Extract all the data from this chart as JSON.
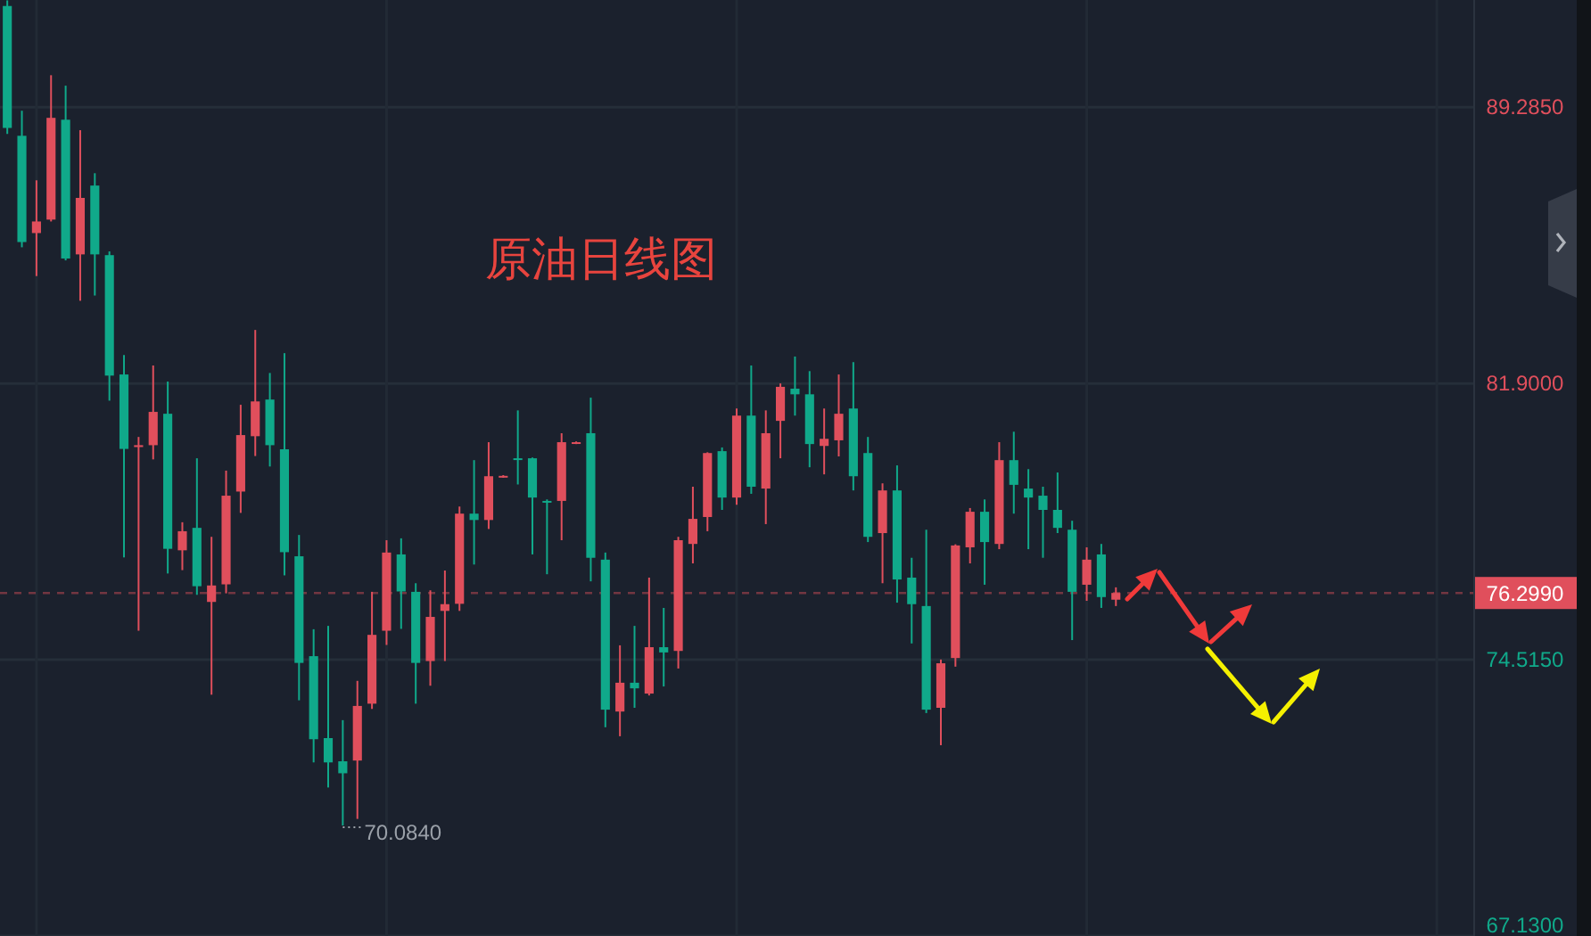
{
  "chart_data": {
    "type": "candlestick",
    "title": "原油日线图",
    "categories": [
      null,
      null,
      null,
      null,
      null,
      null,
      null,
      null,
      null,
      null,
      null,
      null,
      null,
      null,
      null,
      null,
      null,
      null,
      null,
      null,
      null,
      null,
      null,
      null,
      null,
      null,
      null,
      null,
      null,
      null,
      null,
      null,
      null,
      null,
      null,
      null,
      null,
      null,
      null,
      null,
      null,
      null,
      null,
      null,
      null,
      null,
      null,
      null,
      null,
      null,
      null,
      null,
      null,
      null,
      null,
      null,
      null,
      null,
      null,
      null,
      null,
      null,
      null,
      null,
      null,
      null,
      null,
      null,
      null,
      null,
      null,
      null,
      null,
      null,
      null,
      null,
      null,
      null,
      null,
      null,
      null,
      null,
      null,
      null,
      null,
      null,
      null,
      null,
      null,
      null,
      null,
      null,
      null,
      null,
      null,
      null,
      null,
      null,
      null,
      null,
      null
    ],
    "ohlc": [
      [
        91.99,
        92.14,
        88.57,
        88.73
      ],
      [
        88.52,
        89.19,
        85.54,
        85.68
      ],
      [
        85.92,
        87.33,
        84.77,
        86.23
      ],
      [
        86.28,
        90.14,
        86.23,
        89.0
      ],
      [
        88.95,
        89.86,
        85.19,
        85.24
      ],
      [
        85.35,
        88.67,
        84.11,
        86.86
      ],
      [
        87.19,
        87.52,
        84.25,
        85.35
      ],
      [
        85.33,
        85.43,
        81.44,
        82.11
      ],
      [
        82.14,
        82.66,
        77.25,
        80.15
      ],
      [
        80.2,
        80.47,
        75.29,
        80.25
      ],
      [
        80.25,
        82.38,
        79.87,
        81.14
      ],
      [
        81.09,
        81.95,
        76.82,
        77.48
      ],
      [
        77.44,
        78.19,
        76.91,
        77.95
      ],
      [
        78.04,
        79.9,
        76.25,
        76.48
      ],
      [
        76.06,
        77.8,
        73.58,
        76.5
      ],
      [
        76.53,
        79.57,
        76.29,
        78.9
      ],
      [
        79.01,
        81.33,
        78.44,
        80.52
      ],
      [
        80.49,
        83.33,
        79.96,
        81.42
      ],
      [
        81.47,
        82.18,
        79.68,
        80.25
      ],
      [
        80.14,
        82.71,
        76.77,
        77.39
      ],
      [
        77.28,
        77.85,
        73.43,
        74.43
      ],
      [
        74.61,
        75.33,
        71.77,
        72.39
      ],
      [
        72.42,
        75.42,
        71.1,
        71.77
      ],
      [
        71.8,
        72.9,
        70.084,
        71.48
      ],
      [
        71.82,
        73.95,
        70.26,
        73.28
      ],
      [
        73.34,
        76.33,
        73.2,
        75.18
      ],
      [
        75.29,
        77.71,
        74.91,
        77.38
      ],
      [
        77.33,
        77.76,
        75.34,
        76.34
      ],
      [
        76.33,
        76.56,
        73.34,
        74.43
      ],
      [
        74.48,
        76.37,
        73.82,
        75.66
      ],
      [
        75.82,
        76.9,
        74.48,
        76.0
      ],
      [
        76.01,
        78.61,
        75.82,
        78.42
      ],
      [
        78.42,
        79.85,
        77.06,
        78.25
      ],
      [
        78.25,
        80.33,
        78.01,
        79.42
      ],
      [
        79.4,
        79.45,
        79.38,
        79.43
      ],
      [
        79.9,
        81.18,
        79.2,
        79.87
      ],
      [
        79.9,
        79.92,
        77.33,
        78.85
      ],
      [
        78.76,
        78.8,
        76.8,
        78.73
      ],
      [
        78.76,
        80.57,
        77.71,
        80.33
      ],
      [
        80.3,
        80.35,
        80.28,
        80.33
      ],
      [
        80.57,
        81.52,
        76.61,
        77.24
      ],
      [
        77.19,
        77.38,
        72.71,
        73.18
      ],
      [
        73.13,
        74.9,
        72.47,
        73.9
      ],
      [
        73.9,
        75.42,
        73.23,
        73.75
      ],
      [
        73.61,
        76.71,
        73.56,
        74.85
      ],
      [
        74.85,
        75.9,
        73.8,
        74.71
      ],
      [
        74.75,
        77.8,
        74.28,
        77.71
      ],
      [
        77.61,
        79.14,
        77.09,
        78.28
      ],
      [
        78.33,
        80.06,
        77.95,
        80.04
      ],
      [
        80.09,
        80.19,
        78.52,
        78.85
      ],
      [
        78.85,
        81.23,
        78.66,
        81.04
      ],
      [
        81.04,
        82.38,
        78.95,
        79.14
      ],
      [
        79.09,
        81.18,
        78.14,
        80.57
      ],
      [
        80.9,
        81.9,
        79.9,
        81.81
      ],
      [
        81.76,
        82.62,
        81.04,
        81.61
      ],
      [
        81.61,
        82.23,
        79.66,
        80.28
      ],
      [
        80.23,
        81.23,
        79.47,
        80.42
      ],
      [
        80.38,
        82.14,
        79.95,
        81.09
      ],
      [
        81.23,
        82.47,
        79.04,
        79.42
      ],
      [
        80.04,
        80.47,
        77.66,
        77.8
      ],
      [
        77.9,
        79.23,
        76.56,
        79.04
      ],
      [
        79.04,
        79.71,
        76.04,
        76.66
      ],
      [
        76.71,
        77.24,
        74.95,
        76.0
      ],
      [
        75.95,
        77.99,
        73.09,
        73.18
      ],
      [
        73.23,
        74.52,
        72.23,
        74.42
      ],
      [
        74.56,
        77.6,
        74.33,
        77.57
      ],
      [
        77.52,
        78.57,
        77.09,
        78.47
      ],
      [
        78.47,
        78.8,
        76.52,
        77.66
      ],
      [
        77.61,
        80.33,
        77.47,
        79.85
      ],
      [
        79.85,
        80.61,
        78.42,
        79.19
      ],
      [
        79.09,
        79.61,
        77.47,
        78.85
      ],
      [
        78.9,
        79.14,
        77.24,
        78.52
      ],
      [
        78.52,
        79.52,
        77.9,
        78.04
      ],
      [
        77.99,
        78.23,
        75.04,
        76.33
      ],
      [
        76.52,
        77.52,
        76.09,
        77.19
      ],
      [
        77.33,
        77.61,
        75.9,
        76.19
      ],
      [
        76.12,
        76.45,
        75.95,
        76.3
      ],
      null,
      null,
      null,
      null,
      null,
      null,
      null,
      null,
      null,
      null,
      null,
      null,
      null,
      null,
      null,
      null,
      null,
      null,
      null,
      null,
      null,
      null,
      null,
      null
    ],
    "colors": [
      "#10a98a",
      "#10a98a",
      "#e04f5c",
      "#e04f5c",
      "#10a98a",
      "#e04f5c",
      "#10a98a",
      "#10a98a",
      "#10a98a",
      "#e04f5c",
      "#e04f5c",
      "#10a98a",
      "#e04f5c",
      "#10a98a",
      "#e04f5c",
      "#e04f5c",
      "#e04f5c",
      "#e04f5c",
      "#10a98a",
      "#10a98a",
      "#10a98a",
      "#10a98a",
      "#10a98a",
      "#10a98a",
      "#e04f5c",
      "#e04f5c",
      "#e04f5c",
      "#10a98a",
      "#10a98a",
      "#e04f5c",
      "#e04f5c",
      "#e04f5c",
      "#10a98a",
      "#e04f5c",
      "#e04f5c",
      "#10a98a",
      "#10a98a",
      "#10a98a",
      "#e04f5c",
      "#e04f5c",
      "#10a98a",
      "#10a98a",
      "#e04f5c",
      "#10a98a",
      "#e04f5c",
      "#10a98a",
      "#e04f5c",
      "#e04f5c",
      "#e04f5c",
      "#10a98a",
      "#e04f5c",
      "#10a98a",
      "#e04f5c",
      "#e04f5c",
      "#10a98a",
      "#10a98a",
      "#e04f5c",
      "#e04f5c",
      "#10a98a",
      "#10a98a",
      "#e04f5c",
      "#10a98a",
      "#10a98a",
      "#10a98a",
      "#e04f5c",
      "#e04f5c",
      "#e04f5c",
      "#10a98a",
      "#e04f5c",
      "#10a98a",
      "#10a98a",
      "#10a98a",
      "#10a98a",
      "#10a98a",
      "#e04f5c",
      "#10a98a",
      "#e04f5c",
      null,
      null,
      null,
      null,
      null,
      null,
      null,
      null,
      null,
      null,
      null,
      null,
      null,
      null,
      null,
      null,
      null,
      null,
      null,
      null,
      null,
      null,
      null,
      null
    ],
    "ylim": [
      67.13,
      92.15
    ],
    "yticks": [
      {
        "value": 89.285,
        "label": "89.2850"
      },
      {
        "value": 81.9,
        "label": "81.9000"
      },
      {
        "value": 74.515,
        "label": "74.5150"
      },
      {
        "value": 67.13,
        "label": "67.1300"
      }
    ],
    "ref_lines": [
      {
        "axis": "y",
        "value": 76.299,
        "label": "76.2990",
        "color": "#e04f5c",
        "line_style": "dashed"
      }
    ],
    "annotations": [
      "70.0840"
    ],
    "grid": true,
    "tick_labels": "y"
  }
}
